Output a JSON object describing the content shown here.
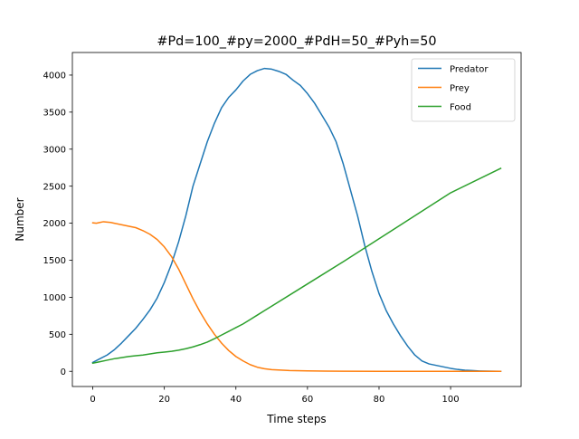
{
  "chart_data": {
    "type": "line",
    "title": "#Pd=100_#py=2000_#PdH=50_#Pyh=50",
    "xlabel": "Time steps",
    "ylabel": "Number",
    "xlim": [
      -5.7,
      119.7
    ],
    "ylim": [
      -205,
      4305
    ],
    "xticks": [
      0,
      20,
      40,
      60,
      80,
      100
    ],
    "yticks": [
      0,
      500,
      1000,
      1500,
      2000,
      2500,
      3000,
      3500,
      4000
    ],
    "grid": false,
    "legend_position": "top-right",
    "series": [
      {
        "name": "Predator",
        "color": "#1f77b4",
        "points": [
          [
            0,
            120
          ],
          [
            2,
            170
          ],
          [
            4,
            220
          ],
          [
            6,
            290
          ],
          [
            8,
            380
          ],
          [
            10,
            480
          ],
          [
            12,
            580
          ],
          [
            14,
            700
          ],
          [
            16,
            830
          ],
          [
            18,
            990
          ],
          [
            20,
            1200
          ],
          [
            22,
            1450
          ],
          [
            24,
            1750
          ],
          [
            26,
            2100
          ],
          [
            28,
            2500
          ],
          [
            30,
            2800
          ],
          [
            32,
            3100
          ],
          [
            34,
            3350
          ],
          [
            36,
            3560
          ],
          [
            38,
            3700
          ],
          [
            40,
            3800
          ],
          [
            42,
            3920
          ],
          [
            44,
            4010
          ],
          [
            46,
            4060
          ],
          [
            48,
            4090
          ],
          [
            50,
            4080
          ],
          [
            52,
            4050
          ],
          [
            54,
            4010
          ],
          [
            56,
            3930
          ],
          [
            58,
            3860
          ],
          [
            60,
            3750
          ],
          [
            62,
            3620
          ],
          [
            64,
            3460
          ],
          [
            66,
            3300
          ],
          [
            68,
            3100
          ],
          [
            70,
            2800
          ],
          [
            72,
            2450
          ],
          [
            74,
            2100
          ],
          [
            76,
            1700
          ],
          [
            78,
            1350
          ],
          [
            80,
            1050
          ],
          [
            82,
            820
          ],
          [
            84,
            640
          ],
          [
            86,
            480
          ],
          [
            88,
            340
          ],
          [
            90,
            220
          ],
          [
            92,
            140
          ],
          [
            94,
            100
          ],
          [
            96,
            80
          ],
          [
            98,
            60
          ],
          [
            100,
            40
          ],
          [
            102,
            25
          ],
          [
            104,
            15
          ],
          [
            106,
            10
          ],
          [
            108,
            5
          ],
          [
            110,
            2
          ],
          [
            114,
            0
          ]
        ]
      },
      {
        "name": "Prey",
        "color": "#ff7f0e",
        "points": [
          [
            0,
            2005
          ],
          [
            1,
            2000
          ],
          [
            2,
            2010
          ],
          [
            3,
            2020
          ],
          [
            5,
            2010
          ],
          [
            6,
            2000
          ],
          [
            8,
            1980
          ],
          [
            10,
            1960
          ],
          [
            12,
            1940
          ],
          [
            14,
            1900
          ],
          [
            16,
            1850
          ],
          [
            18,
            1780
          ],
          [
            20,
            1680
          ],
          [
            22,
            1550
          ],
          [
            24,
            1380
          ],
          [
            26,
            1180
          ],
          [
            28,
            980
          ],
          [
            30,
            800
          ],
          [
            32,
            640
          ],
          [
            34,
            500
          ],
          [
            36,
            380
          ],
          [
            38,
            280
          ],
          [
            40,
            200
          ],
          [
            42,
            140
          ],
          [
            44,
            90
          ],
          [
            46,
            55
          ],
          [
            48,
            35
          ],
          [
            50,
            22
          ],
          [
            55,
            10
          ],
          [
            60,
            6
          ],
          [
            65,
            3
          ],
          [
            70,
            1
          ],
          [
            80,
            0
          ],
          [
            114,
            0
          ]
        ]
      },
      {
        "name": "Food",
        "color": "#2ca02c",
        "points": [
          [
            0,
            110
          ],
          [
            2,
            130
          ],
          [
            4,
            150
          ],
          [
            6,
            170
          ],
          [
            8,
            185
          ],
          [
            10,
            200
          ],
          [
            12,
            210
          ],
          [
            14,
            220
          ],
          [
            16,
            235
          ],
          [
            18,
            250
          ],
          [
            20,
            260
          ],
          [
            22,
            270
          ],
          [
            24,
            285
          ],
          [
            26,
            305
          ],
          [
            28,
            330
          ],
          [
            30,
            360
          ],
          [
            32,
            395
          ],
          [
            34,
            440
          ],
          [
            36,
            490
          ],
          [
            38,
            540
          ],
          [
            40,
            590
          ],
          [
            42,
            640
          ],
          [
            44,
            700
          ],
          [
            46,
            760
          ],
          [
            48,
            820
          ],
          [
            50,
            880
          ],
          [
            60,
            1180
          ],
          [
            70,
            1480
          ],
          [
            80,
            1790
          ],
          [
            90,
            2100
          ],
          [
            100,
            2410
          ],
          [
            114,
            2740
          ]
        ]
      }
    ]
  }
}
